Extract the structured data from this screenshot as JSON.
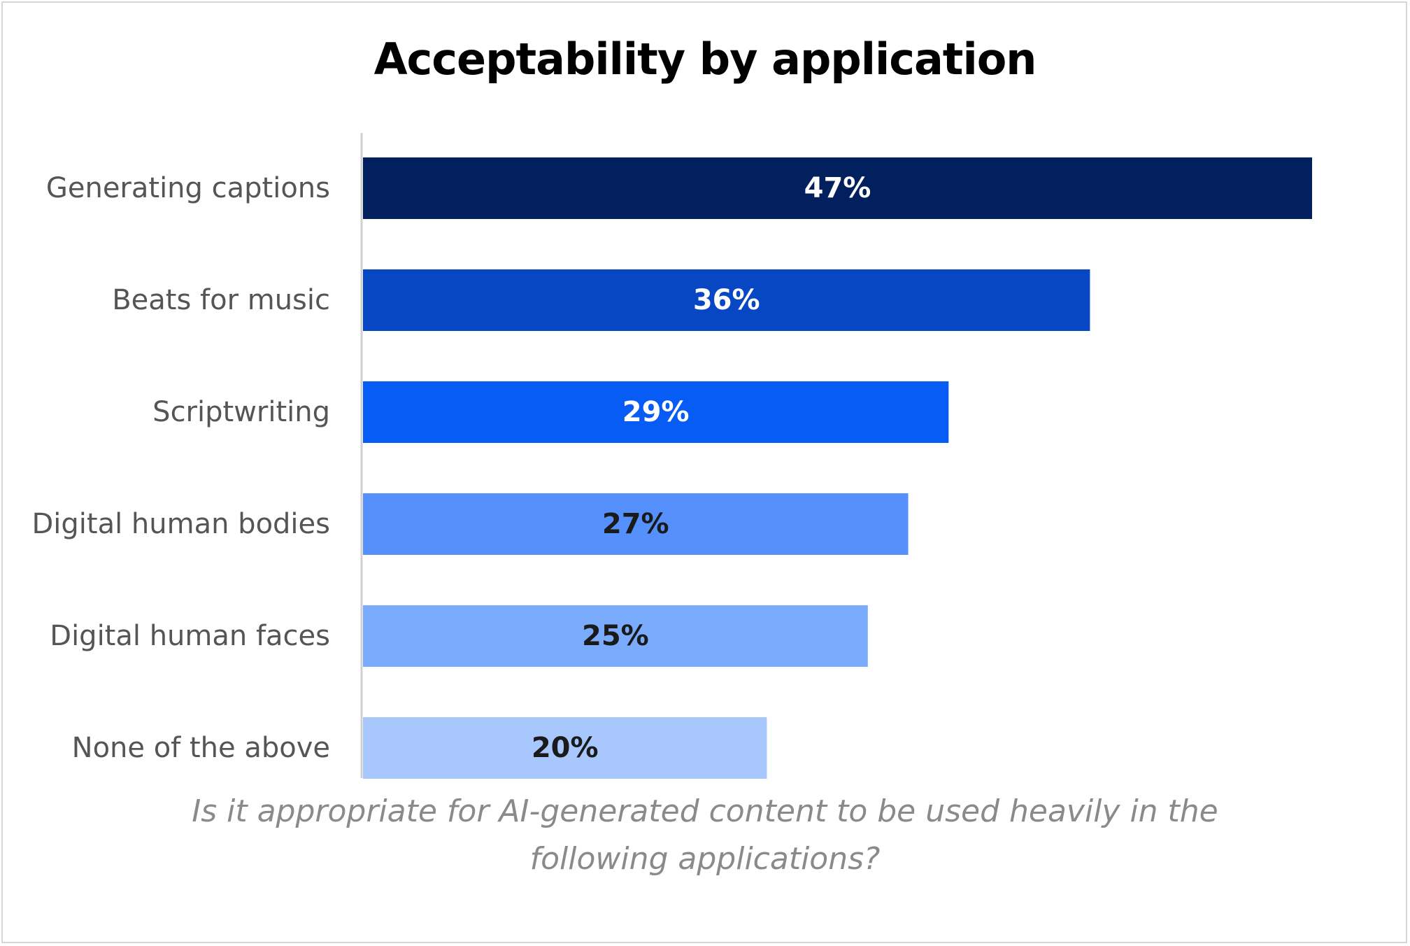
{
  "chart_data": {
    "type": "bar",
    "orientation": "horizontal",
    "title": "Acceptability by application",
    "subtitle_lines": [
      "Is it appropriate for AI-generated content to be used heavily in the",
      "following applications?"
    ],
    "categories": [
      "Generating captions",
      "Beats for music",
      "Scriptwriting",
      "Digital human bodies",
      "Digital human faces",
      "None of the above"
    ],
    "values": [
      47,
      36,
      29,
      27,
      25,
      20
    ],
    "value_labels": [
      "47%",
      "36%",
      "29%",
      "27%",
      "25%",
      "20%"
    ],
    "bar_colors": [
      "#02205e",
      "#0747c4",
      "#075cf5",
      "#5590fd",
      "#7aabfd",
      "#a7c7fd"
    ],
    "label_colors": [
      "#ffffff",
      "#ffffff",
      "#ffffff",
      "#1a1a1a",
      "#1a1a1a",
      "#1a1a1a"
    ],
    "unit": "%",
    "xlim": [
      0,
      47
    ],
    "grid": false,
    "legend": "none"
  }
}
